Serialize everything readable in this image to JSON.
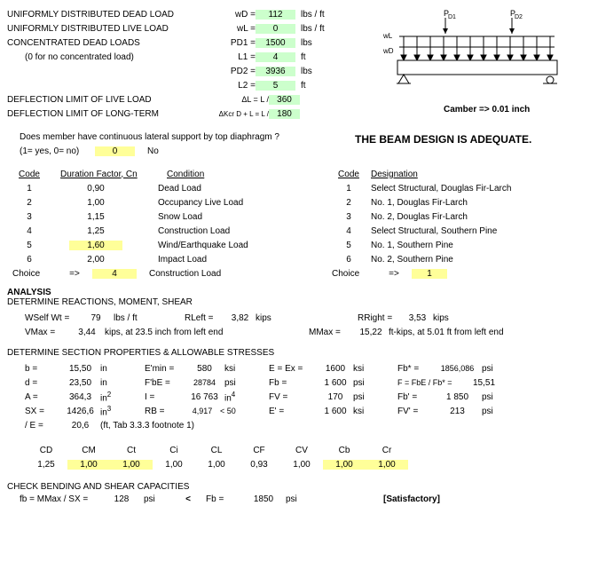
{
  "inputs": {
    "dead_load": {
      "label": "UNIFORMLY DISTRIBUTED DEAD LOAD",
      "sym": "wD =",
      "val": "112",
      "unit": "lbs / ft"
    },
    "live_load": {
      "label": "UNIFORMLY DISTRIBUTED LIVE LOAD",
      "sym": "wL =",
      "val": "0",
      "unit": "lbs / ft"
    },
    "conc_load": {
      "label": "CONCENTRATED DEAD LOADS",
      "sym": "PD1 =",
      "val": "1500",
      "unit": "lbs"
    },
    "conc_note": "(0 for no concentrated load)",
    "l1": {
      "sym": "L1 =",
      "val": "4",
      "unit": "ft"
    },
    "pd2": {
      "sym": "PD2 =",
      "val": "3936",
      "unit": "lbs"
    },
    "l2": {
      "sym": "L2 =",
      "val": "5",
      "unit": "ft"
    },
    "defl_live": {
      "label": "DEFLECTION LIMIT OF LIVE LOAD",
      "sym": "ΔL = L /",
      "val": "360"
    },
    "defl_long": {
      "label": "DEFLECTION LIMIT OF LONG-TERM",
      "sym": "ΔKcr D + L = L /",
      "val": "180"
    }
  },
  "camber": "Camber =>  0.01 inch",
  "adequate": "THE BEAM DESIGN IS ADEQUATE.",
  "lateral": {
    "q": "Does member have continuous lateral support by top diaphragm ?",
    "hint": "(1= yes, 0= no)",
    "val": "0",
    "res": "No"
  },
  "duration": {
    "head_code": "Code",
    "head_df": "Duration Factor, Cn",
    "head_cond": "Condition",
    "rows": [
      {
        "c": "1",
        "d": "0,90",
        "n": "Dead Load"
      },
      {
        "c": "2",
        "d": "1,00",
        "n": "Occupancy Live Load"
      },
      {
        "c": "3",
        "d": "1,15",
        "n": "Snow Load"
      },
      {
        "c": "4",
        "d": "1,25",
        "n": "Construction Load"
      },
      {
        "c": "5",
        "d": "1,60",
        "n": "Wind/Earthquake Load"
      },
      {
        "c": "6",
        "d": "2,00",
        "n": "Impact Load"
      }
    ],
    "choice_lbl": "Choice",
    "arrow": "=>",
    "choice_val": "4",
    "choice_res": "Construction Load"
  },
  "desig": {
    "head_code": "Code",
    "head_des": "Designation",
    "rows": [
      {
        "c": "1",
        "n": "Select Structural, Douglas Fir-Larch"
      },
      {
        "c": "2",
        "n": "No. 1, Douglas Fir-Larch"
      },
      {
        "c": "3",
        "n": "No. 2, Douglas Fir-Larch"
      },
      {
        "c": "4",
        "n": "Select Structural, Southern Pine"
      },
      {
        "c": "5",
        "n": "No. 1, Southern Pine"
      },
      {
        "c": "6",
        "n": "No. 2, Southern Pine"
      }
    ],
    "choice_lbl": "Choice",
    "arrow": "=>",
    "choice_val": "1"
  },
  "analysis": {
    "title": "ANALYSIS",
    "sub1": "DETERMINE REACTIONS,  MOMENT, SHEAR",
    "wself": "WSelf Wt =",
    "wself_v": "79",
    "wself_u": "lbs / ft",
    "rleft": "RLeft =",
    "rleft_v": "3,82",
    "kips": "kips",
    "rright": "RRight =",
    "rright_v": "3,53",
    "vmax": "VMax =",
    "vmax_v": "3,44",
    "vmax_u": "kips, at 23.5 inch from left end",
    "mmax": "MMax =",
    "mmax_v": "15,22",
    "mmax_u": "ft-kips, at 5.01 ft from left end"
  },
  "section": {
    "title": "DETERMINE SECTION PROPERTIES & ALLOWABLE STRESSES",
    "b": "b   =",
    "b_v": "15,50",
    "in": "in",
    "emin": "E'min =",
    "emin_v": "580",
    "ksi": "ksi",
    "ee": "E = Ex   =",
    "ee_v": "1600",
    "fbp": "Fb*  =",
    "fbp_v": "1856,086",
    "psi": "psi",
    "d": "d   =",
    "d_v": "23,50",
    "fbe": "F'bE =",
    "fbe_v": "28784",
    "fb": "Fb   =",
    "fb_v": "1 600",
    "ff": "F  = FbE / Fb* =",
    "ff_v": "15,51",
    "a": "A   =",
    "a_v": "364,3",
    "in2": "in2",
    "i": "I   =",
    "i_v": "16 763",
    "in4": "in4",
    "fv": "FV   =",
    "fv_v": "170",
    "fbp2": "Fb'   =",
    "fbp2_v": "1 850",
    "sx": "SX   =",
    "sx_v": "1426,6",
    "in3": "in3",
    "rb": "RB =",
    "rb_v": "4,917",
    "rb_lim": "< 50",
    "ep": "E'   =",
    "ep_v": "1 600",
    "fvp": "FV'   =",
    "fvp_v": "213",
    "le": "/ E   =",
    "le_v": "20,6",
    "le_note": "(ft, Tab 3.3.3 footnote 1)"
  },
  "factors": {
    "heads": [
      "CD",
      "CM",
      "Ct",
      "Ci",
      "CL",
      "CF",
      "CV",
      "Cb",
      "Cr"
    ],
    "vals": [
      "1,25",
      "1,00",
      "1,00",
      "1,00",
      "1,00",
      "0,93",
      "1,00",
      "1,00",
      "1,00"
    ],
    "yellow": [
      false,
      true,
      true,
      false,
      false,
      false,
      false,
      true,
      true
    ]
  },
  "check": {
    "title": "CHECK BENDING AND SHEAR CAPACITIES",
    "fb": "fb = MMax / SX =",
    "fb_v": "128",
    "psi": "psi",
    "lt": "<",
    "fbp": "Fb  =",
    "fbp_v": "1850",
    "sat": "[Satisfactory]"
  }
}
